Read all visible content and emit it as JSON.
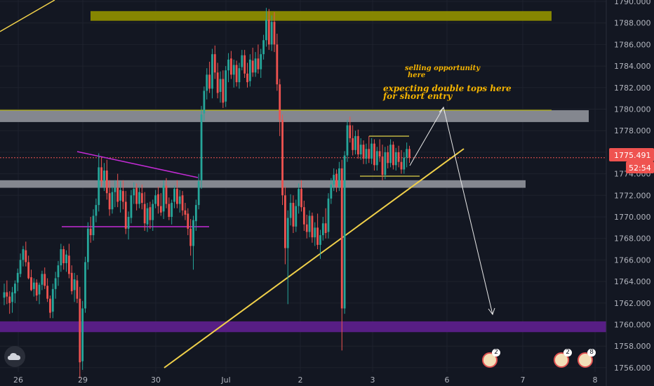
{
  "chart_data": {
    "type": "candlestick",
    "title": "",
    "ylabel": "",
    "xlabel": "",
    "ylim": [
      1755.0,
      1790.5
    ],
    "price_ticks": [
      1790.0,
      1788.0,
      1786.0,
      1784.0,
      1782.0,
      1780.0,
      1778.0,
      1776.0,
      1774.0,
      1772.0,
      1770.0,
      1768.0,
      1766.0,
      1764.0,
      1762.0,
      1760.0,
      1758.0,
      1756.0
    ],
    "date_ticks": [
      "26",
      "29",
      "30",
      "Jul",
      "2",
      "3",
      "6",
      "7",
      "8"
    ],
    "current_price": "1775.491",
    "countdown": "52:54",
    "price_label_color": "#ef5350",
    "up_color": "#26a69a",
    "down_color": "#ef5350",
    "zones": [
      {
        "name": "supply zone",
        "from": 1788.2,
        "to": 1789.1,
        "color": "#8c8c00"
      },
      {
        "name": "resistance zone",
        "from": 1778.8,
        "to": 1779.9,
        "color": "#8a8d96"
      },
      {
        "name": "support zone",
        "from": 1772.7,
        "to": 1773.4,
        "color": "#8a8d96"
      },
      {
        "name": "target zone",
        "from": 1759.3,
        "to": 1760.3,
        "color": "#5b1f8a"
      }
    ],
    "annotations": [
      "selling opportunity",
      "here",
      "expecting double tops here",
      "for short entry"
    ],
    "candles": [
      [
        1762.5,
        1763.8,
        1761.8,
        1763.0
      ],
      [
        1763.0,
        1764.1,
        1761.9,
        1762.6
      ],
      [
        1762.6,
        1763.1,
        1761.0,
        1762.0
      ],
      [
        1762.1,
        1763.5,
        1761.1,
        1763.0
      ],
      [
        1762.9,
        1764.1,
        1762.0,
        1763.8
      ],
      [
        1763.9,
        1765.2,
        1763.1,
        1764.8
      ],
      [
        1764.7,
        1766.6,
        1764.4,
        1766.0
      ],
      [
        1766.0,
        1767.3,
        1765.4,
        1767.0
      ],
      [
        1766.9,
        1767.7,
        1765.4,
        1765.8
      ],
      [
        1765.8,
        1766.4,
        1764.2,
        1764.3
      ],
      [
        1764.4,
        1765.1,
        1763.1,
        1763.2
      ],
      [
        1763.3,
        1764.3,
        1762.6,
        1763.9
      ],
      [
        1763.9,
        1764.2,
        1762.2,
        1762.7
      ],
      [
        1762.8,
        1763.9,
        1761.9,
        1763.7
      ],
      [
        1763.7,
        1765.0,
        1763.2,
        1764.7
      ],
      [
        1764.7,
        1765.3,
        1763.3,
        1763.6
      ],
      [
        1763.6,
        1764.3,
        1762.1,
        1762.4
      ],
      [
        1762.4,
        1762.7,
        1760.6,
        1761.1
      ],
      [
        1761.2,
        1763.8,
        1760.6,
        1763.3
      ],
      [
        1763.3,
        1764.9,
        1762.4,
        1764.3
      ],
      [
        1764.4,
        1765.9,
        1763.6,
        1765.5
      ],
      [
        1765.5,
        1767.5,
        1764.9,
        1767.0
      ],
      [
        1767.0,
        1767.3,
        1765.1,
        1765.7
      ],
      [
        1765.7,
        1766.9,
        1764.9,
        1766.5
      ],
      [
        1766.4,
        1767.5,
        1764.3,
        1764.7
      ],
      [
        1764.8,
        1765.5,
        1762.8,
        1763.1
      ],
      [
        1763.2,
        1764.8,
        1762.1,
        1764.2
      ],
      [
        1764.1,
        1764.6,
        1762.0,
        1762.4
      ],
      [
        1762.4,
        1763.5,
        1755.0,
        1756.5
      ],
      [
        1756.6,
        1762.2,
        1755.8,
        1761.5
      ],
      [
        1761.5,
        1766.3,
        1761.1,
        1765.8
      ],
      [
        1765.8,
        1769.5,
        1765.1,
        1768.9
      ],
      [
        1768.9,
        1770.0,
        1767.6,
        1768.3
      ],
      [
        1768.3,
        1770.7,
        1767.8,
        1770.1
      ],
      [
        1770.1,
        1771.7,
        1769.5,
        1771.1
      ],
      [
        1771.1,
        1775.9,
        1770.5,
        1774.6
      ],
      [
        1774.6,
        1775.5,
        1772.8,
        1773.3
      ],
      [
        1773.3,
        1775.0,
        1772.4,
        1774.3
      ],
      [
        1774.3,
        1775.3,
        1771.6,
        1772.2
      ],
      [
        1772.2,
        1773.4,
        1770.1,
        1770.7
      ],
      [
        1770.7,
        1772.8,
        1770.3,
        1772.3
      ],
      [
        1772.3,
        1773.4,
        1770.9,
        1772.7
      ],
      [
        1772.7,
        1774.0,
        1770.9,
        1771.4
      ],
      [
        1771.5,
        1773.3,
        1770.4,
        1772.5
      ],
      [
        1772.4,
        1773.4,
        1770.7,
        1771.4
      ],
      [
        1771.4,
        1772.4,
        1768.4,
        1768.9
      ],
      [
        1768.9,
        1770.5,
        1767.9,
        1770.0
      ],
      [
        1769.9,
        1772.5,
        1769.4,
        1772.0
      ],
      [
        1772.0,
        1773.2,
        1771.2,
        1772.6
      ],
      [
        1772.7,
        1773.1,
        1770.6,
        1771.2
      ],
      [
        1771.2,
        1772.8,
        1770.8,
        1772.3
      ],
      [
        1772.2,
        1773.0,
        1770.7,
        1771.3
      ],
      [
        1771.2,
        1772.3,
        1768.7,
        1769.4
      ],
      [
        1769.3,
        1771.3,
        1768.6,
        1770.8
      ],
      [
        1770.9,
        1771.4,
        1768.9,
        1769.7
      ],
      [
        1769.7,
        1771.6,
        1768.7,
        1771.2
      ],
      [
        1771.2,
        1772.5,
        1770.8,
        1772.0
      ],
      [
        1772.1,
        1772.8,
        1770.3,
        1771.0
      ],
      [
        1771.0,
        1772.2,
        1770.1,
        1770.4
      ],
      [
        1770.5,
        1773.4,
        1769.8,
        1772.9
      ],
      [
        1772.9,
        1773.6,
        1770.8,
        1771.2
      ],
      [
        1771.2,
        1771.8,
        1769.7,
        1770.0
      ],
      [
        1770.0,
        1771.6,
        1769.3,
        1771.3
      ],
      [
        1771.4,
        1772.9,
        1770.8,
        1772.6
      ],
      [
        1772.6,
        1773.4,
        1770.8,
        1771.2
      ],
      [
        1771.2,
        1772.5,
        1770.4,
        1771.9
      ],
      [
        1772.0,
        1772.4,
        1770.1,
        1770.6
      ],
      [
        1770.6,
        1771.3,
        1769.7,
        1770.2
      ],
      [
        1770.3,
        1770.8,
        1768.3,
        1768.9
      ],
      [
        1768.9,
        1769.8,
        1766.4,
        1767.3
      ],
      [
        1767.3,
        1770.1,
        1765.1,
        1769.7
      ],
      [
        1769.6,
        1771.6,
        1768.7,
        1771.1
      ],
      [
        1771.1,
        1774.0,
        1770.7,
        1773.3
      ],
      [
        1773.4,
        1780.3,
        1772.6,
        1779.5
      ],
      [
        1779.6,
        1782.1,
        1778.9,
        1781.7
      ],
      [
        1781.7,
        1783.8,
        1780.9,
        1783.2
      ],
      [
        1783.2,
        1784.4,
        1781.5,
        1781.9
      ],
      [
        1781.9,
        1785.6,
        1781.0,
        1785.1
      ],
      [
        1785.1,
        1785.9,
        1782.8,
        1783.4
      ],
      [
        1783.4,
        1784.3,
        1781.0,
        1781.5
      ],
      [
        1781.6,
        1783.5,
        1780.6,
        1782.8
      ],
      [
        1782.8,
        1783.6,
        1780.1,
        1780.6
      ],
      [
        1780.7,
        1784.0,
        1780.2,
        1783.6
      ],
      [
        1783.6,
        1785.2,
        1782.5,
        1784.6
      ],
      [
        1784.7,
        1785.4,
        1782.8,
        1783.2
      ],
      [
        1783.2,
        1784.6,
        1782.0,
        1784.1
      ],
      [
        1784.1,
        1784.5,
        1782.1,
        1782.5
      ],
      [
        1782.5,
        1784.3,
        1781.9,
        1783.8
      ],
      [
        1783.9,
        1785.5,
        1783.6,
        1785.0
      ],
      [
        1785.0,
        1785.5,
        1782.9,
        1783.3
      ],
      [
        1783.3,
        1784.3,
        1782.0,
        1782.5
      ],
      [
        1782.6,
        1785.1,
        1782.1,
        1784.6
      ],
      [
        1784.5,
        1785.7,
        1783.0,
        1783.4
      ],
      [
        1783.4,
        1785.3,
        1783.0,
        1784.7
      ],
      [
        1784.7,
        1786.0,
        1783.3,
        1783.7
      ],
      [
        1783.7,
        1785.6,
        1782.9,
        1785.1
      ],
      [
        1785.1,
        1786.9,
        1784.6,
        1786.4
      ],
      [
        1786.4,
        1789.4,
        1785.8,
        1788.3
      ],
      [
        1788.3,
        1789.3,
        1785.5,
        1786.0
      ],
      [
        1786.0,
        1788.7,
        1785.4,
        1788.1
      ],
      [
        1788.1,
        1789.0,
        1785.3,
        1786.0
      ],
      [
        1786.0,
        1787.0,
        1781.7,
        1782.3
      ],
      [
        1782.3,
        1782.8,
        1777.5,
        1779.0
      ],
      [
        1779.0,
        1779.5,
        1771.1,
        1772.0
      ],
      [
        1772.0,
        1772.8,
        1765.6,
        1767.1
      ],
      [
        1767.1,
        1770.6,
        1761.9,
        1769.9
      ],
      [
        1769.9,
        1772.1,
        1769.2,
        1771.3
      ],
      [
        1771.3,
        1772.0,
        1768.5,
        1769.1
      ],
      [
        1769.1,
        1771.6,
        1768.6,
        1771.0
      ],
      [
        1771.0,
        1773.1,
        1770.3,
        1772.6
      ],
      [
        1772.6,
        1773.4,
        1770.5,
        1770.9
      ],
      [
        1770.9,
        1771.5,
        1768.7,
        1769.3
      ],
      [
        1769.3,
        1770.2,
        1768.0,
        1768.6
      ],
      [
        1768.6,
        1770.6,
        1768.1,
        1770.1
      ],
      [
        1770.1,
        1770.4,
        1767.6,
        1768.1
      ],
      [
        1768.1,
        1769.5,
        1767.3,
        1769.0
      ],
      [
        1769.0,
        1770.3,
        1767.0,
        1767.4
      ],
      [
        1767.4,
        1768.8,
        1766.1,
        1768.3
      ],
      [
        1768.3,
        1770.0,
        1767.8,
        1769.4
      ],
      [
        1769.4,
        1770.8,
        1768.0,
        1768.5
      ],
      [
        1768.6,
        1772.2,
        1768.0,
        1771.7
      ],
      [
        1771.7,
        1773.6,
        1771.2,
        1773.0
      ],
      [
        1773.0,
        1774.5,
        1772.4,
        1773.9
      ],
      [
        1774.0,
        1774.4,
        1772.3,
        1772.8
      ],
      [
        1772.8,
        1775.1,
        1772.4,
        1774.5
      ],
      [
        1774.5,
        1775.3,
        1757.6,
        1761.5
      ],
      [
        1761.5,
        1776.1,
        1761.0,
        1775.7
      ],
      [
        1775.7,
        1779.0,
        1775.1,
        1778.5
      ],
      [
        1778.5,
        1779.3,
        1776.9,
        1777.3
      ],
      [
        1777.3,
        1778.5,
        1775.7,
        1776.2
      ],
      [
        1776.2,
        1778.0,
        1775.8,
        1777.5
      ],
      [
        1777.5,
        1778.1,
        1775.4,
        1775.8
      ],
      [
        1775.8,
        1777.3,
        1775.3,
        1776.7
      ],
      [
        1776.7,
        1777.1,
        1774.9,
        1775.4
      ],
      [
        1775.4,
        1776.8,
        1774.9,
        1776.3
      ],
      [
        1776.3,
        1777.5,
        1775.0,
        1775.4
      ],
      [
        1775.4,
        1777.3,
        1774.9,
        1776.8
      ],
      [
        1776.8,
        1777.2,
        1774.3,
        1774.8
      ],
      [
        1774.8,
        1776.5,
        1774.3,
        1776.1
      ],
      [
        1776.1,
        1777.2,
        1775.1,
        1775.6
      ],
      [
        1775.6,
        1776.7,
        1773.4,
        1773.9
      ],
      [
        1773.9,
        1776.5,
        1773.5,
        1776.0
      ],
      [
        1776.0,
        1776.6,
        1774.5,
        1775.0
      ],
      [
        1775.0,
        1777.2,
        1774.6,
        1776.7
      ],
      [
        1776.7,
        1777.0,
        1774.4,
        1774.8
      ],
      [
        1774.8,
        1776.4,
        1774.3,
        1776.0
      ],
      [
        1776.0,
        1776.6,
        1774.6,
        1775.1
      ],
      [
        1775.1,
        1776.2,
        1774.0,
        1774.4
      ],
      [
        1774.4,
        1776.0,
        1774.0,
        1775.5
      ],
      [
        1775.5,
        1776.9,
        1774.6,
        1776.3
      ],
      [
        1776.3,
        1776.6,
        1775.0,
        1775.5
      ]
    ]
  },
  "badges": [
    {
      "name": "event-flag",
      "count": "2"
    },
    {
      "name": "event-flag",
      "count": "2"
    },
    {
      "name": "event-flag",
      "count": "8"
    }
  ]
}
